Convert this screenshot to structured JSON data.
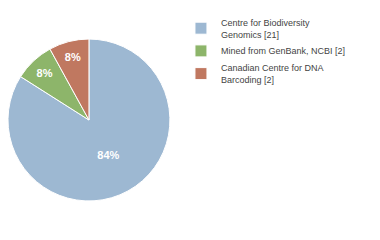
{
  "chart_data": {
    "type": "pie",
    "categories": [
      "Centre for Biodiversity\nGenomics [21]",
      "Mined from GenBank, NCBI [2]",
      "Canadian Centre for DNA\nBarcoding [2]"
    ],
    "values": [
      84,
      8,
      8
    ],
    "value_labels": [
      "84%",
      "8%",
      "8%"
    ],
    "colors": [
      "#9db8d2",
      "#8db56a",
      "#c07860"
    ],
    "data_labels": true,
    "legend": "right"
  }
}
